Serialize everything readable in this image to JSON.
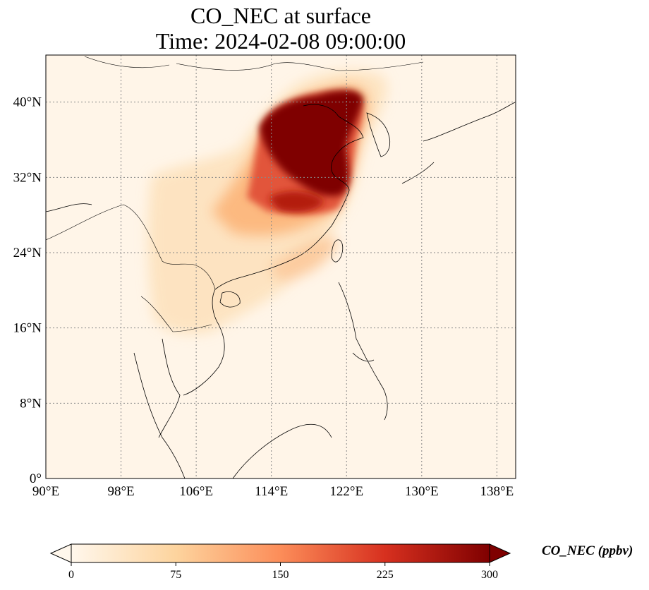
{
  "title": {
    "line1": "CO_NEC at surface",
    "line2": "Time: 2024-02-08 09:00:00"
  },
  "map": {
    "projection": "PlateCarree",
    "lon_range": [
      90,
      140
    ],
    "lat_range": [
      0,
      45
    ],
    "lon_ticks": [
      {
        "value": 90,
        "label": "90°E"
      },
      {
        "value": 98,
        "label": "98°E"
      },
      {
        "value": 106,
        "label": "106°E"
      },
      {
        "value": 114,
        "label": "114°E"
      },
      {
        "value": 122,
        "label": "122°E"
      },
      {
        "value": 130,
        "label": "130°E"
      },
      {
        "value": 138,
        "label": "138°E"
      }
    ],
    "lat_ticks": [
      {
        "value": 0,
        "label": "0°"
      },
      {
        "value": 8,
        "label": "8°N"
      },
      {
        "value": 16,
        "label": "16°N"
      },
      {
        "value": 24,
        "label": "24°N"
      },
      {
        "value": 32,
        "label": "32°N"
      },
      {
        "value": 40,
        "label": "40°N"
      }
    ],
    "gridlines": "dotted",
    "colormap": "OrRd",
    "colormap_colors": [
      "#fff7ec",
      "#fdd49e",
      "#fc8d59",
      "#d7301f",
      "#7f0000"
    ],
    "background_color": "#fff5e8"
  },
  "colorbar": {
    "label": "CO_NEC (ppbv)",
    "ticks": [
      {
        "value": 0,
        "label": "0"
      },
      {
        "value": 75,
        "label": "75"
      },
      {
        "value": 150,
        "label": "150"
      },
      {
        "value": 225,
        "label": "225"
      },
      {
        "value": 300,
        "label": "300"
      }
    ],
    "vmin": 0,
    "vmax": 300,
    "extend": "both"
  }
}
